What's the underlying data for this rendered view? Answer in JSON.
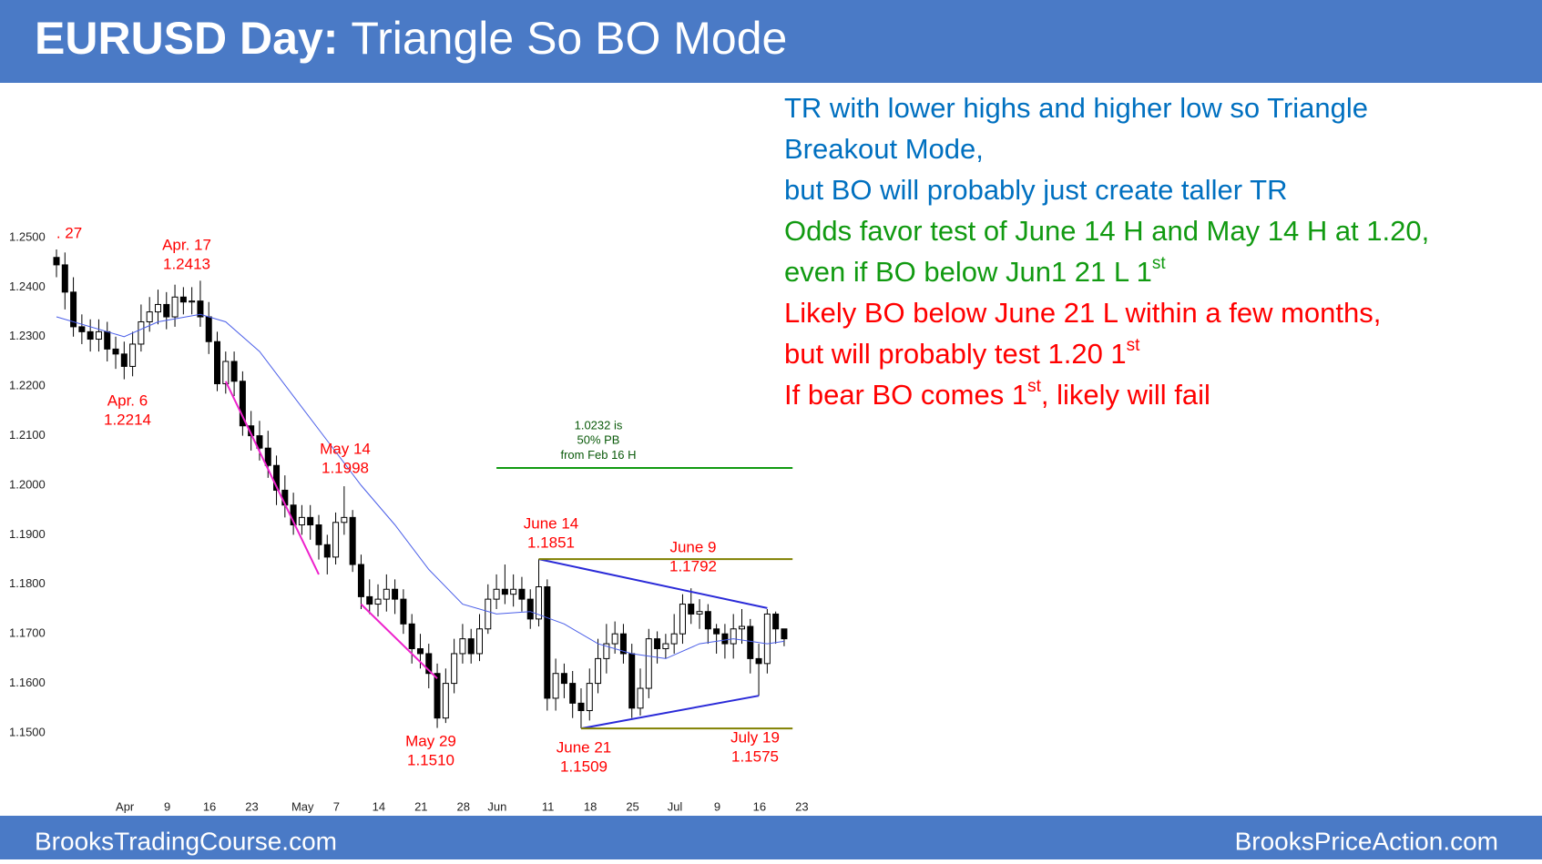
{
  "header": {
    "title_bold": "EURUSD Day:",
    "title_rest": "Triangle So BO Mode"
  },
  "footer": {
    "left": "BrooksTradingCourse.com",
    "right": "BrooksPriceAction.com"
  },
  "notes": [
    {
      "text": "TR with lower highs and higher low so Triangle",
      "color": "#0070c0"
    },
    {
      "text": "Breakout Mode,",
      "color": "#0070c0"
    },
    {
      "text": "but BO will probably just create taller TR",
      "color": "#0070c0"
    },
    {
      "text": "Odds favor test of June 14 H and May 14 H at 1.20,",
      "color": "#119a11"
    },
    {
      "text": "even if BO below Jun1 21 L 1",
      "sup": "st",
      "color": "#119a11"
    },
    {
      "text": "Likely BO below June 21 L within a few months,",
      "color": "#ff0000"
    },
    {
      "text": "but will probably test 1.20 1",
      "sup": "st",
      "color": "#ff0000"
    },
    {
      "text": "If bear BO comes 1",
      "sup": "st",
      "tail": ", likely will fail",
      "color": "#ff0000"
    }
  ],
  "chart_data": {
    "type": "candlestick",
    "ylim": [
      1.1435,
      1.2655
    ],
    "yticks": [
      {
        "value": 1.25,
        "label": "1.2500"
      },
      {
        "value": 1.24,
        "label": "1.2400"
      },
      {
        "value": 1.23,
        "label": "1.2300"
      },
      {
        "value": 1.22,
        "label": "1.2200"
      },
      {
        "value": 1.21,
        "label": "1.2100"
      },
      {
        "value": 1.2,
        "label": "1.2000"
      },
      {
        "value": 1.19,
        "label": "1.1900"
      },
      {
        "value": 1.18,
        "label": "1.1800"
      },
      {
        "value": 1.17,
        "label": "1.1700"
      },
      {
        "value": 1.16,
        "label": "1.1600"
      },
      {
        "value": 1.15,
        "label": "1.1500"
      }
    ],
    "xticks": [
      {
        "value": 4,
        "label": "Apr"
      },
      {
        "value": 9,
        "label": "9"
      },
      {
        "value": 14,
        "label": "16"
      },
      {
        "value": 19,
        "label": "23"
      },
      {
        "value": 25,
        "label": "May"
      },
      {
        "value": 29,
        "label": "7"
      },
      {
        "value": 34,
        "label": "14"
      },
      {
        "value": 39,
        "label": "21"
      },
      {
        "value": 44,
        "label": "28"
      },
      {
        "value": 48,
        "label": "Jun"
      },
      {
        "value": 54,
        "label": "11"
      },
      {
        "value": 59,
        "label": "18"
      },
      {
        "value": 64,
        "label": "25"
      },
      {
        "value": 69,
        "label": "Jul"
      },
      {
        "value": 74,
        "label": "9"
      },
      {
        "value": 79,
        "label": "16"
      },
      {
        "value": 84,
        "label": "23"
      }
    ],
    "up_color": "#ffffff",
    "down_color": "#000000",
    "open": [
      1.246,
      1.2445,
      1.239,
      1.232,
      1.231,
      1.2295,
      1.231,
      1.2275,
      1.2265,
      1.224,
      1.2285,
      1.233,
      1.235,
      1.2365,
      1.234,
      1.238,
      1.237,
      1.2372,
      1.234,
      1.229,
      1.2205,
      1.225,
      1.221,
      1.212,
      1.21,
      1.2075,
      1.204,
      1.199,
      1.196,
      1.192,
      1.1935,
      1.192,
      1.188,
      1.1855,
      1.1925,
      1.1935,
      1.184,
      1.1775,
      1.176,
      1.177,
      1.179,
      1.177,
      1.172,
      1.167,
      1.166,
      1.162,
      1.153,
      1.16,
      1.166,
      1.169,
      1.166,
      1.171,
      1.177,
      1.179,
      1.178,
      1.179,
      1.177,
      1.173,
      1.1795,
      1.157,
      1.162,
      1.16,
      1.156,
      1.1545,
      1.16,
      1.165,
      1.168,
      1.17,
      1.166,
      1.155,
      1.159,
      1.169,
      1.167,
      1.168,
      1.17,
      1.176,
      1.174,
      1.1745,
      1.171,
      1.17,
      1.168,
      1.171,
      1.1715,
      1.165,
      1.164,
      1.174,
      1.171
    ],
    "high": [
      1.2476,
      1.247,
      1.242,
      1.2345,
      1.2335,
      1.2335,
      1.233,
      1.23,
      1.229,
      1.231,
      1.2365,
      1.238,
      1.2395,
      1.239,
      1.2405,
      1.24,
      1.24,
      1.2413,
      1.237,
      1.231,
      1.227,
      1.227,
      1.223,
      1.215,
      1.213,
      1.211,
      1.206,
      1.202,
      1.1985,
      1.196,
      1.196,
      1.194,
      1.19,
      1.1945,
      1.1998,
      1.195,
      1.186,
      1.181,
      1.18,
      1.182,
      1.181,
      1.179,
      1.174,
      1.17,
      1.168,
      1.164,
      1.163,
      1.169,
      1.172,
      1.171,
      1.174,
      1.18,
      1.182,
      1.184,
      1.182,
      1.1815,
      1.179,
      1.1851,
      1.181,
      1.165,
      1.164,
      1.1625,
      1.159,
      1.163,
      1.169,
      1.172,
      1.1725,
      1.172,
      1.168,
      1.163,
      1.171,
      1.1705,
      1.17,
      1.174,
      1.178,
      1.1792,
      1.177,
      1.176,
      1.172,
      1.172,
      1.174,
      1.175,
      1.173,
      1.168,
      1.175,
      1.1745,
      1.171
    ],
    "low": [
      1.242,
      1.2355,
      1.23,
      1.2285,
      1.227,
      1.227,
      1.225,
      1.2235,
      1.2214,
      1.222,
      1.227,
      1.231,
      1.2325,
      1.2315,
      1.232,
      1.2345,
      1.2345,
      1.232,
      1.2265,
      1.219,
      1.2185,
      1.218,
      1.21,
      1.207,
      1.205,
      1.2015,
      1.196,
      1.1935,
      1.19,
      1.19,
      1.189,
      1.185,
      1.182,
      1.184,
      1.19,
      1.1825,
      1.175,
      1.174,
      1.1735,
      1.1745,
      1.174,
      1.17,
      1.164,
      1.163,
      1.159,
      1.151,
      1.152,
      1.158,
      1.164,
      1.164,
      1.1645,
      1.17,
      1.175,
      1.176,
      1.1755,
      1.1745,
      1.171,
      1.1715,
      1.1545,
      1.1545,
      1.157,
      1.153,
      1.1509,
      1.1525,
      1.158,
      1.162,
      1.166,
      1.164,
      1.153,
      1.1535,
      1.157,
      1.164,
      1.165,
      1.166,
      1.168,
      1.172,
      1.171,
      1.168,
      1.166,
      1.165,
      1.165,
      1.168,
      1.162,
      1.1575,
      1.162,
      1.168,
      1.1675
    ],
    "close": [
      1.2445,
      1.239,
      1.232,
      1.231,
      1.2295,
      1.231,
      1.2275,
      1.2265,
      1.224,
      1.2285,
      1.233,
      1.235,
      1.2365,
      1.234,
      1.238,
      1.237,
      1.2372,
      1.234,
      1.229,
      1.2205,
      1.225,
      1.221,
      1.212,
      1.21,
      1.2075,
      1.204,
      1.199,
      1.196,
      1.192,
      1.1935,
      1.192,
      1.188,
      1.1855,
      1.1925,
      1.1935,
      1.184,
      1.1775,
      1.176,
      1.177,
      1.179,
      1.177,
      1.172,
      1.167,
      1.166,
      1.162,
      1.153,
      1.16,
      1.166,
      1.169,
      1.166,
      1.171,
      1.177,
      1.179,
      1.178,
      1.179,
      1.177,
      1.173,
      1.1795,
      1.157,
      1.162,
      1.16,
      1.156,
      1.1545,
      1.16,
      1.165,
      1.168,
      1.17,
      1.166,
      1.155,
      1.159,
      1.169,
      1.167,
      1.168,
      1.17,
      1.176,
      1.174,
      1.1745,
      1.171,
      1.17,
      1.168,
      1.171,
      1.1715,
      1.165,
      1.164,
      1.174,
      1.171,
      1.169
    ],
    "lines": [
      {
        "name": "moving average",
        "color": "#4a5ee8",
        "width": 1,
        "x": [
          0,
          8,
          12,
          17,
          20,
          24,
          28,
          32,
          36,
          40,
          44,
          48,
          52,
          56,
          60,
          64,
          68,
          72,
          76,
          80,
          84,
          86
        ],
        "values": [
          1.234,
          1.23,
          1.233,
          1.2345,
          1.233,
          1.227,
          1.218,
          1.209,
          1.2,
          1.192,
          1.183,
          1.176,
          1.174,
          1.1745,
          1.172,
          1.168,
          1.166,
          1.165,
          1.168,
          1.169,
          1.168,
          1.1685
        ]
      },
      {
        "color": "#ee22cc",
        "width": 2,
        "x": [
          20,
          31
        ],
        "values": [
          1.221,
          1.182
        ]
      },
      {
        "color": "#ee22cc",
        "width": 2,
        "x": [
          36,
          45
        ],
        "values": [
          1.176,
          1.161
        ]
      },
      {
        "color": "#2a2ad8",
        "width": 2,
        "x": [
          57,
          84
        ],
        "values": [
          1.1851,
          1.1752
        ]
      },
      {
        "color": "#2a2ad8",
        "width": 2,
        "x": [
          62,
          83
        ],
        "values": [
          1.1509,
          1.1575
        ]
      },
      {
        "color": "#808000",
        "width": 2,
        "x": [
          57,
          87
        ],
        "values": [
          1.1851,
          1.1851
        ]
      },
      {
        "color": "#808000",
        "width": 2,
        "x": [
          62,
          87
        ],
        "values": [
          1.1509,
          1.1509
        ]
      },
      {
        "color": "#119a11",
        "width": 2,
        "x": [
          52,
          87
        ],
        "values": [
          1.2035,
          1.2035
        ]
      }
    ],
    "annotations": [
      {
        "lines": [
          ". 27"
        ],
        "color": "#ff0000"
      },
      {
        "lines": [
          "Apr. 17",
          "1.2413"
        ],
        "color": "#ff0000"
      },
      {
        "lines": [
          "Apr. 6",
          "1.2214"
        ],
        "color": "#ff0000"
      },
      {
        "lines": [
          "May 14",
          "1.1998"
        ],
        "color": "#ff0000"
      },
      {
        "lines": [
          "May 29",
          "1.1510"
        ],
        "color": "#ff0000"
      },
      {
        "lines": [
          "June 14",
          "1.1851"
        ],
        "color": "#ff0000"
      },
      {
        "lines": [
          "June 9",
          "1.1792"
        ],
        "color": "#ff0000"
      },
      {
        "lines": [
          "June 21",
          "1.1509"
        ],
        "color": "#ff0000"
      },
      {
        "lines": [
          "July 19",
          "1.1575"
        ],
        "color": "#ff0000"
      },
      {
        "lines": [
          "1.0232 is",
          "50% PB",
          "from Feb 16 H"
        ],
        "color": "#0a5a0a"
      }
    ]
  }
}
